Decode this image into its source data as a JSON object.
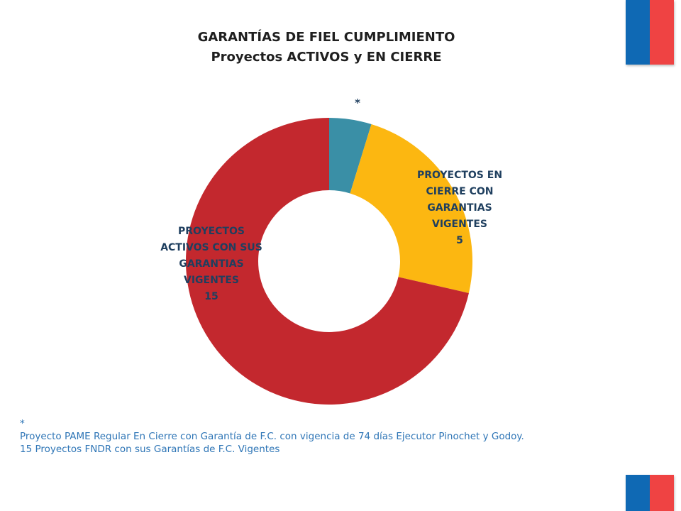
{
  "header": {
    "title_line1": "GARANTÍAS DE FIEL CUMPLIMIENTO",
    "title_line2": "Proyectos ACTIVOS y EN CIERRE"
  },
  "chart_data": {
    "type": "pie",
    "donut": true,
    "slices": [
      {
        "label_lines": [
          "*"
        ],
        "value": 1,
        "color": "#3a8fa6",
        "label_color": "#1f3f5f"
      },
      {
        "label_lines": [
          "PROYECTOS EN",
          "CIERRE CON",
          "GARANTIAS",
          "VIGENTES",
          "5"
        ],
        "value": 5,
        "color": "#fcb711",
        "label_color": "#1f3f5f"
      },
      {
        "label_lines": [
          "PROYECTOS",
          "ACTIVOS CON SUS",
          "GARANTIAS",
          "VIGENTES",
          "15"
        ],
        "value": 15,
        "color": "#c3282e",
        "label_color": "#1f3f5f"
      }
    ]
  },
  "notes": {
    "asterisk": "*",
    "line1": "Proyecto PAME Regular  En Cierre con Garantía de F.C. con vigencia de 74 días Ejecutor Pinochet y Godoy.",
    "line2": "15 Proyectos  FNDR con sus Garantías de F.C. Vigentes"
  }
}
